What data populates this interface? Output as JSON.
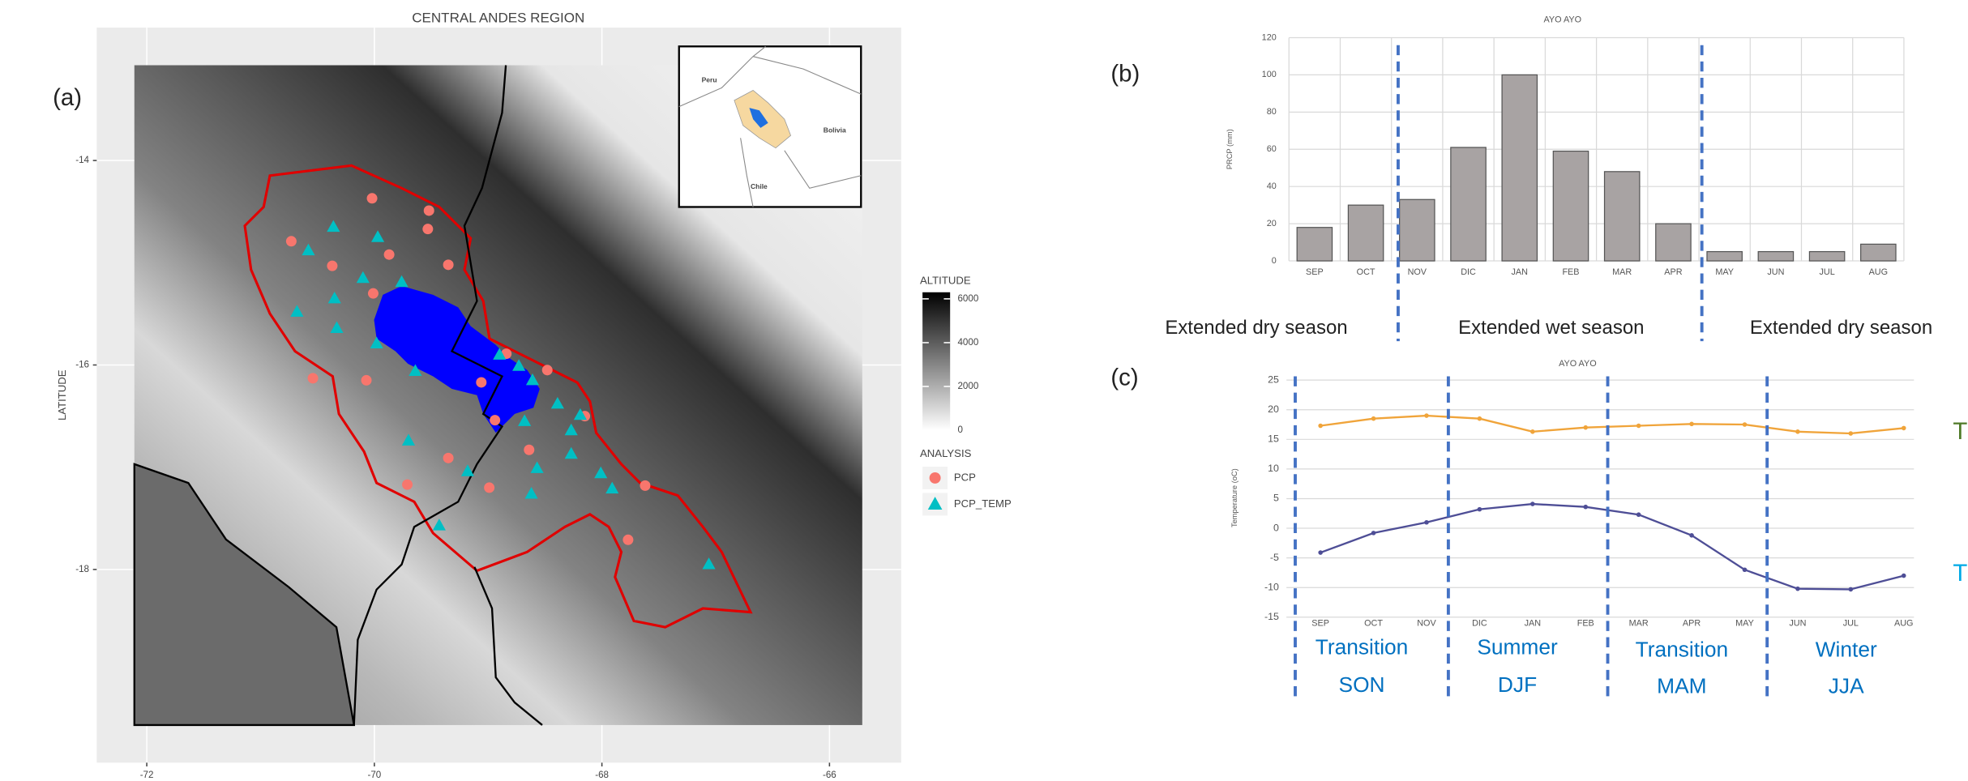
{
  "chart_data": [
    {
      "type": "map",
      "panel_label": "(a)",
      "title": "CENTRAL ANDES REGION",
      "ylabel": "LATITUDE",
      "xlim": [
        -72.44,
        -65.37
      ],
      "ylim": [
        -19.89,
        -12.7
      ],
      "xticks": [
        -72,
        -70,
        -68,
        -66
      ],
      "yticks": [
        -14,
        -16,
        -18
      ],
      "grid": true,
      "colorbar": {
        "title": "ALTITUDE",
        "lim": [
          0,
          6300
        ],
        "ticks": [
          0,
          2000,
          4000,
          6000
        ]
      },
      "legend_title": "ANALYSIS",
      "inset_labels": [
        "Peru",
        "Bolivia",
        "Chile"
      ],
      "series": [
        {
          "name": "PCP",
          "color": "#f8766d",
          "marker": "circle",
          "x": [
            -70.02,
            -69.52,
            -69.53,
            -70.73,
            -69.87,
            -70.37,
            -69.35,
            -70.01,
            -68.84,
            -68.48,
            -70.54,
            -70.07,
            -69.06,
            -68.15,
            -68.94,
            -69.35,
            -68.64,
            -69.71,
            -68.99,
            -67.62,
            -67.77
          ],
          "y": [
            -14.37,
            -14.49,
            -14.67,
            -14.79,
            -14.92,
            -15.03,
            -15.02,
            -15.3,
            -15.89,
            -16.05,
            -16.13,
            -16.15,
            -16.17,
            -16.5,
            -16.54,
            -16.91,
            -16.83,
            -17.17,
            -17.2,
            -17.18,
            -17.71
          ]
        },
        {
          "name": "PCP_TEMP",
          "color": "#00bfc4",
          "marker": "triangle",
          "x": [
            -70.36,
            -69.97,
            -70.58,
            -70.1,
            -69.76,
            -70.35,
            -70.68,
            -70.33,
            -69.98,
            -68.9,
            -68.73,
            -68.61,
            -69.64,
            -68.39,
            -68.68,
            -68.19,
            -68.27,
            -69.7,
            -68.27,
            -69.18,
            -68.57,
            -68.01,
            -68.62,
            -67.91,
            -69.43,
            -67.06
          ],
          "y": [
            -14.65,
            -14.75,
            -14.88,
            -15.15,
            -15.19,
            -15.35,
            -15.48,
            -15.64,
            -15.79,
            -15.9,
            -16.01,
            -16.15,
            -16.06,
            -16.38,
            -16.55,
            -16.49,
            -16.64,
            -16.74,
            -16.87,
            -17.04,
            -17.01,
            -17.06,
            -17.26,
            -17.21,
            -17.57,
            -17.95
          ]
        }
      ]
    },
    {
      "type": "bar",
      "panel_label": "(b)",
      "title": "AYO AYO",
      "ylabel": "PRCP (mm)",
      "categories": [
        "SEP",
        "OCT",
        "NOV",
        "DIC",
        "JAN",
        "FEB",
        "MAR",
        "APR",
        "MAY",
        "JUN",
        "JUL",
        "AUG"
      ],
      "values": [
        18,
        30,
        33,
        61,
        100,
        59,
        48,
        20,
        5,
        5,
        5,
        9
      ],
      "color": "#a8a3a3",
      "ylim": [
        0,
        120
      ],
      "yticks": [
        0,
        20,
        40,
        60,
        80,
        100,
        120
      ],
      "grid": true,
      "season_labels": [
        {
          "text": "Extended dry season",
          "color": "#3b5e22"
        },
        {
          "text": "Extended wet season",
          "color": "#2e75b6"
        },
        {
          "text": "Extended dry season",
          "color": "#3b5e22"
        }
      ]
    },
    {
      "type": "line",
      "panel_label": "(c)",
      "title": "AYO AYO",
      "ylabel": "Temperature (oC)",
      "categories": [
        "SEP",
        "OCT",
        "NOV",
        "DIC",
        "JAN",
        "FEB",
        "MAR",
        "APR",
        "MAY",
        "JUN",
        "JUL",
        "AUG"
      ],
      "ylim": [
        -15,
        25
      ],
      "yticks": [
        -15,
        -10,
        -5,
        0,
        5,
        10,
        15,
        20,
        25
      ],
      "grid": true,
      "series": [
        {
          "name": "T",
          "color": "#f0a43a",
          "label_color": "#4f7a28",
          "values": [
            17.3,
            18.5,
            19,
            18.5,
            16.3,
            17,
            17.3,
            17.6,
            17.5,
            16.3,
            16,
            16.9
          ]
        },
        {
          "name": "T",
          "color": "#4e4e96",
          "label_color": "#00a9e6",
          "values": [
            -4.1,
            -0.8,
            1,
            3.2,
            4.1,
            3.6,
            2.3,
            -1.2,
            -7,
            -10.2,
            -10.3,
            -8
          ]
        }
      ],
      "season_labels": [
        [
          "Transition",
          "SON"
        ],
        [
          "Summer",
          "DJF"
        ],
        [
          "Transition",
          "MAM"
        ],
        [
          "Winter",
          "JJA"
        ]
      ]
    }
  ]
}
